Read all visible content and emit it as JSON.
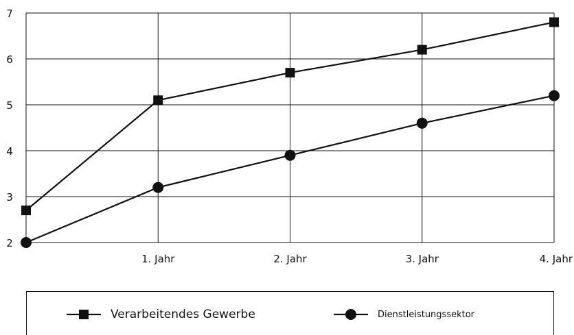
{
  "chart_data": {
    "type": "line",
    "categories": [
      "",
      "1. Jahr",
      "2. Jahr",
      "3. Jahr",
      "4. Jahr"
    ],
    "series": [
      {
        "name": "Verarbeitendes Gewerbe",
        "marker": "square",
        "values": [
          2.7,
          5.1,
          5.7,
          6.2,
          6.8
        ]
      },
      {
        "name": "Dienstleistungssektor",
        "marker": "circle",
        "values": [
          2.0,
          3.2,
          3.9,
          4.6,
          5.2
        ]
      }
    ],
    "yticks": [
      2,
      3,
      4,
      5,
      6,
      7
    ],
    "ylim": [
      2,
      7
    ],
    "grid": true,
    "legend_position": "bottom",
    "colors": {
      "line": "#111111",
      "grid": "#111111"
    }
  }
}
